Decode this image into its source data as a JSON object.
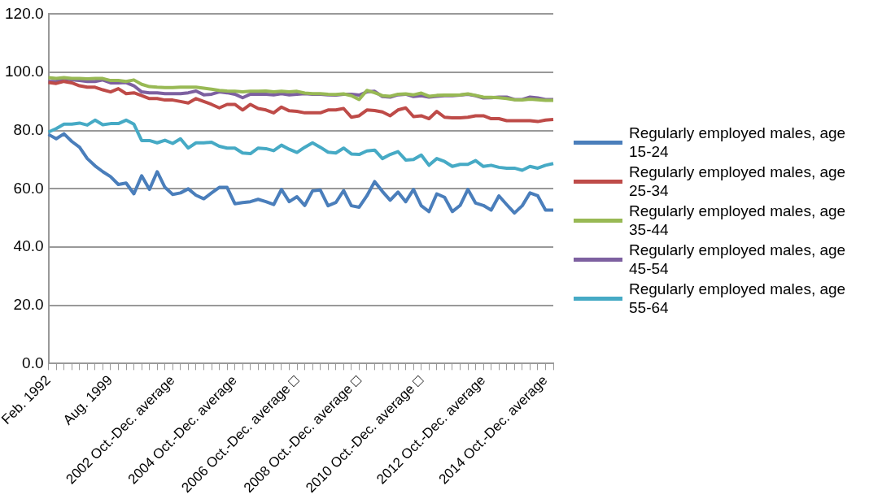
{
  "chart_data": {
    "type": "line",
    "categories": [
      "Feb. 1992",
      null,
      null,
      null,
      null,
      null,
      null,
      null,
      "Aug. 1999",
      null,
      null,
      null,
      null,
      null,
      null,
      null,
      "2002 Oct.-Dec. average",
      null,
      null,
      null,
      null,
      null,
      null,
      null,
      "2004 Oct.-Dec. average",
      null,
      null,
      null,
      null,
      null,
      null,
      null,
      "2006 Oct.-Dec. average □",
      null,
      null,
      null,
      null,
      null,
      null,
      null,
      "2008 Oct.-Dec. average □",
      null,
      null,
      null,
      null,
      null,
      null,
      null,
      "2010 Oct.-Dec. average □",
      null,
      null,
      null,
      null,
      null,
      null,
      null,
      "2012 Oct.-Dec. average",
      null,
      null,
      null,
      null,
      null,
      null,
      null,
      "2014 Oct.-Dec. average",
      null
    ],
    "series": [
      {
        "name": "Regularly employed males, age 15-24",
        "color": "#4a7ebb",
        "values": [
          78.7,
          77.2,
          78.9,
          76.3,
          74.3,
          70.4,
          67.9,
          65.9,
          64.2,
          61.5,
          62.0,
          58.3,
          64.5,
          59.8,
          65.9,
          60.5,
          58.1,
          58.6,
          60.0,
          57.8,
          56.6,
          58.6,
          60.5,
          60.5,
          54.9,
          55.3,
          55.6,
          56.4,
          55.6,
          54.6,
          59.8,
          55.6,
          57.3,
          54.3,
          59.3,
          59.6,
          54.2,
          55.3,
          59.4,
          54.2,
          53.7,
          57.6,
          62.5,
          59.1,
          56.1,
          58.9,
          55.6,
          59.8,
          54.2,
          52.2,
          58.3,
          57.1,
          52.2,
          54.3,
          59.8,
          55.1,
          54.3,
          52.7,
          57.6,
          54.6,
          51.7,
          54.2,
          58.6,
          57.6,
          52.7,
          52.7
        ]
      },
      {
        "name": "Regularly employed males, age 25-34",
        "color": "#be4b48",
        "values": [
          96.5,
          96.2,
          96.9,
          96.4,
          95.4,
          94.9,
          94.9,
          94.0,
          93.3,
          94.4,
          92.7,
          93.0,
          92.0,
          91.0,
          91.0,
          90.5,
          90.5,
          90.0,
          89.5,
          91.0,
          90.0,
          89.0,
          87.8,
          89.0,
          89.0,
          87.1,
          89.0,
          87.6,
          87.1,
          86.1,
          88.1,
          86.8,
          86.6,
          86.1,
          86.1,
          86.1,
          87.1,
          87.1,
          87.6,
          84.6,
          85.1,
          87.1,
          86.9,
          86.4,
          85.1,
          87.1,
          87.8,
          84.8,
          85.1,
          84.1,
          86.6,
          84.6,
          84.4,
          84.4,
          84.6,
          85.1,
          85.1,
          84.1,
          84.1,
          83.4,
          83.4,
          83.4,
          83.4,
          83.1,
          83.6,
          83.8
        ]
      },
      {
        "name": "Regularly employed males, age 35-44",
        "color": "#98b954",
        "values": [
          98.2,
          97.9,
          98.2,
          97.9,
          97.9,
          97.8,
          97.9,
          97.9,
          97.2,
          97.2,
          96.9,
          97.4,
          95.9,
          95.1,
          94.9,
          94.8,
          94.8,
          94.9,
          94.9,
          94.9,
          94.6,
          94.2,
          93.8,
          93.6,
          93.5,
          93.3,
          93.5,
          93.5,
          93.6,
          93.3,
          93.5,
          93.3,
          93.5,
          92.9,
          92.7,
          92.7,
          92.5,
          92.4,
          92.6,
          92.0,
          90.7,
          93.8,
          93.0,
          92.0,
          91.8,
          92.5,
          92.6,
          92.3,
          92.9,
          91.8,
          92.1,
          92.2,
          92.2,
          92.3,
          92.6,
          92.1,
          91.5,
          91.4,
          91.3,
          91.0,
          90.6,
          90.5,
          90.8,
          90.6,
          90.4,
          90.4
        ]
      },
      {
        "name": "Regularly employed males, age 45-54",
        "color": "#7d60a0",
        "values": [
          96.9,
          96.9,
          97.9,
          97.4,
          97.2,
          96.9,
          96.9,
          97.4,
          96.4,
          96.4,
          96.5,
          95.4,
          93.3,
          93.0,
          93.0,
          92.7,
          92.7,
          92.7,
          93.0,
          93.6,
          92.3,
          92.5,
          93.3,
          93.0,
          92.5,
          91.3,
          92.5,
          92.5,
          92.5,
          92.3,
          92.7,
          92.3,
          92.5,
          92.7,
          92.5,
          92.5,
          92.3,
          92.2,
          92.5,
          92.5,
          92.2,
          93.3,
          93.5,
          91.7,
          91.5,
          92.3,
          92.5,
          91.7,
          92.0,
          91.5,
          91.8,
          92.0,
          92.0,
          92.2,
          92.5,
          92.0,
          91.2,
          91.3,
          91.5,
          91.5,
          90.7,
          90.7,
          91.5,
          91.2,
          90.7,
          90.7
        ]
      },
      {
        "name": "Regularly employed males, age 55-64",
        "color": "#46aac5",
        "values": [
          79.5,
          80.7,
          82.2,
          82.2,
          82.6,
          81.9,
          83.6,
          82.0,
          82.4,
          82.4,
          83.6,
          82.2,
          76.6,
          76.6,
          75.8,
          76.7,
          75.6,
          77.2,
          74.0,
          75.8,
          75.8,
          76.0,
          74.6,
          74.0,
          74.0,
          72.3,
          72.1,
          74.0,
          73.8,
          73.1,
          75.0,
          73.6,
          72.5,
          74.3,
          75.8,
          74.3,
          72.6,
          72.3,
          74.0,
          72.0,
          71.8,
          73.0,
          73.3,
          70.4,
          71.8,
          72.8,
          69.9,
          70.1,
          71.6,
          68.1,
          70.4,
          69.4,
          67.7,
          68.4,
          68.4,
          69.7,
          67.7,
          68.1,
          67.4,
          67.1,
          67.1,
          66.4,
          67.7,
          67.1,
          68.1,
          68.7
        ]
      }
    ],
    "ylim": [
      0,
      120
    ],
    "yticks": [
      {
        "value": 0,
        "label": "0.0"
      },
      {
        "value": 20,
        "label": "20.0"
      },
      {
        "value": 40,
        "label": "40.0"
      },
      {
        "value": 60,
        "label": "60.0"
      },
      {
        "value": 80,
        "label": "80.0"
      },
      {
        "value": 100,
        "label": "100.0"
      },
      {
        "value": 120,
        "label": "120.0"
      }
    ],
    "grid": "y",
    "legend": "right",
    "marker": "none",
    "line_style": "solid"
  }
}
